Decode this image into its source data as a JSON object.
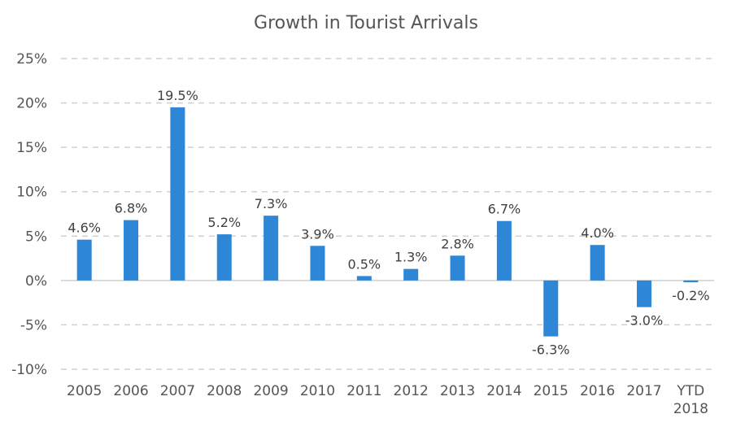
{
  "chart_data": {
    "type": "bar",
    "title": "Growth in Tourist Arrivals",
    "categories": [
      [
        "2005"
      ],
      [
        "2006"
      ],
      [
        "2007"
      ],
      [
        "2008"
      ],
      [
        "2009"
      ],
      [
        "2010"
      ],
      [
        "2011"
      ],
      [
        "2012"
      ],
      [
        "2013"
      ],
      [
        "2014"
      ],
      [
        "2015"
      ],
      [
        "2016"
      ],
      [
        "2017"
      ],
      [
        "YTD",
        "2018"
      ]
    ],
    "values": [
      4.6,
      6.8,
      19.5,
      5.2,
      7.3,
      3.9,
      0.5,
      1.3,
      2.8,
      6.7,
      -6.3,
      4.0,
      -3.0,
      -0.2
    ],
    "data_labels": [
      "4.6%",
      "6.8%",
      "19.5%",
      "5.2%",
      "7.3%",
      "3.9%",
      "0.5%",
      "1.3%",
      "2.8%",
      "6.7%",
      "-6.3%",
      "4.0%",
      "-3.0%",
      "-0.2%"
    ],
    "ylim": [
      -10,
      25
    ],
    "yticks": [
      25,
      20,
      15,
      10,
      5,
      0,
      -5,
      -10
    ],
    "ytick_labels": [
      "25%",
      "20%",
      "15%",
      "10%",
      "5%",
      "0%",
      "-5%",
      "-10%"
    ],
    "xlabel": "",
    "ylabel": "",
    "grid": true,
    "legend": "none",
    "colors": {
      "bar": "#2e86d6",
      "grid": "#d0d0d0",
      "axis": "#cfcfcf",
      "text": "#555555"
    }
  }
}
